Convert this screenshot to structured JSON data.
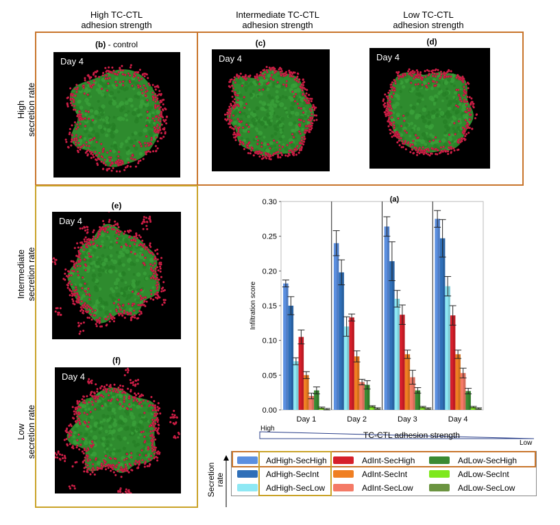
{
  "column_headers": [
    {
      "line1": "High TC-CTL",
      "line2": "adhesion strength"
    },
    {
      "line1": "Intermediate TC-CTL",
      "line2": "adhesion strength"
    },
    {
      "line1": "Low TC-CTL",
      "line2": "adhesion strength"
    }
  ],
  "row_headers": [
    {
      "line1": "High",
      "line2": "secretion rate"
    },
    {
      "line1": "Intermediate",
      "line2": "secretion rate"
    },
    {
      "line1": "Low",
      "line2": "secretion rate"
    }
  ],
  "panels": [
    {
      "label": "(b)",
      "suffix": " - control",
      "day": "Day 4"
    },
    {
      "label": "(c)",
      "suffix": "",
      "day": "Day 4"
    },
    {
      "label": "(d)",
      "suffix": "",
      "day": "Day 4"
    },
    {
      "label": "(e)",
      "suffix": "",
      "day": "Day 4"
    },
    {
      "label": "(f)",
      "suffix": "",
      "day": "Day 4"
    }
  ],
  "colors": {
    "tumor": "#2e8b2e",
    "ctl": "#d8204a",
    "frame_orange": "#c8742a",
    "frame_gold": "#c9a227"
  },
  "chart_data": {
    "type": "bar",
    "title": "(a)",
    "xlabel": "",
    "ylabel": "Infiltration score",
    "ylim": [
      0,
      0.3
    ],
    "yticks": [
      "0.00",
      "0.05",
      "0.10",
      "0.15",
      "0.20",
      "0.25",
      "0.30"
    ],
    "categories": [
      "Day 1",
      "Day 2",
      "Day 3",
      "Day 4"
    ],
    "series": [
      {
        "name": "AdHigh-SecHigh",
        "color": "#5b8fe0",
        "values": [
          0.182,
          0.24,
          0.264,
          0.275
        ],
        "errors": [
          0.005,
          0.018,
          0.014,
          0.012
        ]
      },
      {
        "name": "AdHigh-SecInt",
        "color": "#2f6fb8",
        "values": [
          0.15,
          0.198,
          0.214,
          0.247
        ],
        "errors": [
          0.013,
          0.018,
          0.028,
          0.027
        ]
      },
      {
        "name": "AdHigh-SecLow",
        "color": "#8ee8f4",
        "values": [
          0.07,
          0.12,
          0.16,
          0.178
        ],
        "errors": [
          0.005,
          0.014,
          0.012,
          0.014
        ]
      },
      {
        "name": "AdInt-SecHigh",
        "color": "#d61f2a",
        "values": [
          0.105,
          0.133,
          0.137,
          0.136
        ],
        "errors": [
          0.01,
          0.005,
          0.014,
          0.014
        ]
      },
      {
        "name": "AdInt-SecInt",
        "color": "#f07f22",
        "values": [
          0.05,
          0.077,
          0.08,
          0.08
        ],
        "errors": [
          0.005,
          0.008,
          0.006,
          0.006
        ]
      },
      {
        "name": "AdInt-SecLow",
        "color": "#f47a66",
        "values": [
          0.02,
          0.04,
          0.047,
          0.053
        ],
        "errors": [
          0.004,
          0.004,
          0.01,
          0.007
        ]
      },
      {
        "name": "AdLow-SecHigh",
        "color": "#3a8a32",
        "values": [
          0.028,
          0.036,
          0.028,
          0.027
        ],
        "errors": [
          0.005,
          0.006,
          0.004,
          0.004
        ]
      },
      {
        "name": "AdLow-SecInt",
        "color": "#7ee81c",
        "values": [
          0.003,
          0.005,
          0.004,
          0.004
        ],
        "errors": [
          0.001,
          0.001,
          0.001,
          0.001
        ]
      },
      {
        "name": "AdLow-SecLow",
        "color": "#6b9440",
        "values": [
          0.001,
          0.002,
          0.002,
          0.002
        ],
        "errors": [
          0.001,
          0.001,
          0.001,
          0.001
        ]
      }
    ],
    "legend_placement": "bottom",
    "grid": false
  },
  "adhesion_scale": {
    "left": "High",
    "center": "TC-CTL adhesion strength",
    "right": "Low"
  },
  "secretion_scale": {
    "line1": "Secretion",
    "line2": "rate"
  }
}
